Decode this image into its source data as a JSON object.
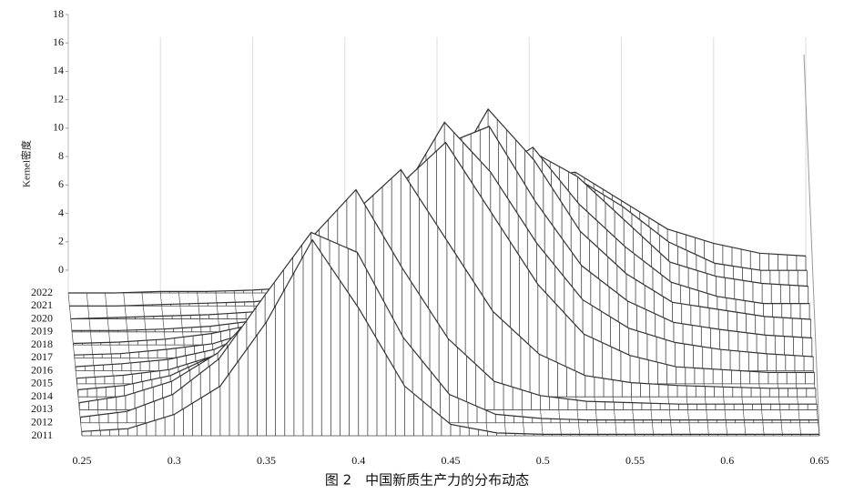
{
  "chart_data": {
    "type": "kde-surface",
    "title": "图 2　中国新质生产力的分布动态",
    "zlabel": "Kernel密度",
    "x": [
      0.25,
      0.275,
      0.3,
      0.325,
      0.35,
      0.375,
      0.4,
      0.425,
      0.45,
      0.475,
      0.5,
      0.525,
      0.55,
      0.575,
      0.6,
      0.625,
      0.65
    ],
    "xlim": [
      0.25,
      0.65
    ],
    "xticks": [
      0.25,
      0.3,
      0.35,
      0.4,
      0.45,
      0.5,
      0.55,
      0.6,
      0.65
    ],
    "zlim": [
      0,
      18
    ],
    "zticks": [
      0,
      2,
      4,
      6,
      8,
      10,
      12,
      14,
      16,
      18
    ],
    "color": "#333333",
    "series": [
      {
        "name": "2011",
        "values": [
          0.3,
          0.5,
          1.5,
          3.5,
          8,
          13.8,
          9,
          3.5,
          0.8,
          0.2,
          0.1,
          0.1,
          0.1,
          0.1,
          0.1,
          0.1,
          0.1
        ]
      },
      {
        "name": "2012",
        "values": [
          0.4,
          0.8,
          2,
          4.5,
          9,
          13.4,
          12,
          6,
          2,
          0.6,
          0.3,
          0.2,
          0.2,
          0.2,
          0.2,
          0.2,
          0.2
        ]
      },
      {
        "name": "2013",
        "values": [
          0.5,
          1,
          2,
          4,
          7.5,
          12,
          15.5,
          10,
          5,
          2,
          1,
          0.6,
          0.5,
          0.4,
          0.4,
          0.4,
          0.4
        ]
      },
      {
        "name": "2014",
        "values": [
          0.5,
          0.8,
          1.5,
          3,
          5.5,
          9,
          13,
          16,
          11,
          6,
          3,
          1.5,
          1,
          0.8,
          0.7,
          0.6,
          0.6
        ]
      },
      {
        "name": "2015",
        "values": [
          0.4,
          0.6,
          1,
          2,
          4,
          6.5,
          10,
          14,
          17,
          12,
          7,
          3.5,
          2,
          1.2,
          1,
          0.8,
          0.8
        ]
      },
      {
        "name": "2016",
        "values": [
          0.3,
          0.5,
          0.8,
          1.5,
          3,
          5,
          8,
          12,
          17.5,
          14,
          9,
          5,
          3,
          2,
          1.5,
          1.2,
          1
        ]
      },
      {
        "name": "2017",
        "values": [
          0.2,
          0.3,
          0.6,
          1,
          2,
          3.5,
          6,
          10,
          15,
          16.3,
          11,
          6.5,
          4,
          2.5,
          2,
          1.6,
          1.4
        ]
      },
      {
        "name": "2018",
        "values": [
          0.1,
          0.2,
          0.4,
          0.8,
          1.5,
          2.5,
          4,
          7,
          11,
          16.6,
          13,
          8,
          5,
          3,
          2.5,
          2,
          1.8
        ]
      },
      {
        "name": "2019",
        "values": [
          0.1,
          0.1,
          0.2,
          0.4,
          0.8,
          1.5,
          3,
          5,
          8,
          11,
          13,
          9,
          6,
          3.5,
          2.5,
          2,
          2
        ]
      },
      {
        "name": "2020",
        "values": [
          0,
          0.1,
          0.2,
          0.3,
          0.5,
          1,
          2,
          4,
          6,
          9,
          11.8,
          10,
          7,
          4,
          3,
          2.5,
          2.3
        ]
      },
      {
        "name": "2021",
        "values": [
          0,
          0,
          0.1,
          0.2,
          0.3,
          0.6,
          1.2,
          3,
          5,
          7.5,
          10,
          9,
          7,
          4.5,
          3,
          2.5,
          2.5
        ]
      },
      {
        "name": "2022",
        "values": [
          0,
          0,
          0.1,
          0.1,
          0.2,
          0.4,
          0.8,
          2,
          4,
          6,
          8,
          8.5,
          6.5,
          4.5,
          3.5,
          2.8,
          2.6
        ]
      }
    ]
  }
}
